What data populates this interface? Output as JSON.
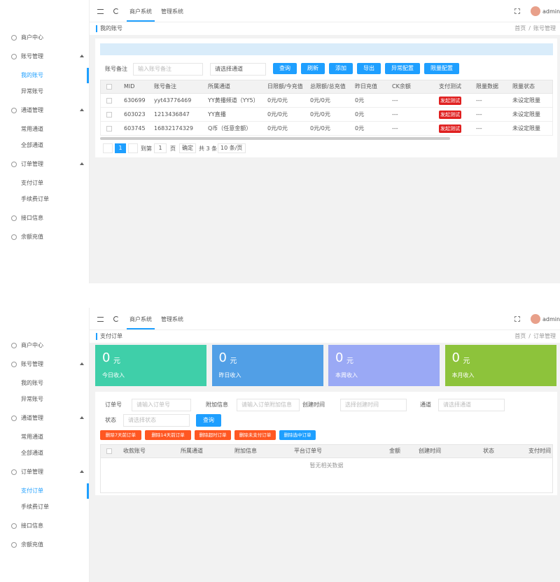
{
  "panels": [
    {
      "topbar": {
        "tabs": [
          "商户系统",
          "管理系统"
        ],
        "user": "admin"
      },
      "sidebar": [
        {
          "label": "商户中心"
        },
        {
          "label": "账号管理",
          "children": [
            {
              "label": "我的账号",
              "selected": true
            },
            {
              "label": "异常账号"
            }
          ]
        },
        {
          "label": "通道管理",
          "children": [
            {
              "label": "常用通道"
            },
            {
              "label": "全部通道"
            }
          ]
        },
        {
          "label": "订单管理",
          "children": [
            {
              "label": "支付订单"
            },
            {
              "label": "手续费订单"
            }
          ]
        },
        {
          "label": "接口信息"
        },
        {
          "label": "余额充值"
        }
      ],
      "breadcrumb": {
        "title": "我的账号",
        "home": "首页",
        "separator": "/",
        "current": "账号管理"
      },
      "filter": {
        "label": "账号备注",
        "placeholder": "输入账号备注",
        "select": "请选择通道"
      },
      "buttons": [
        "查询",
        "刷新",
        "添加",
        "导出",
        "异常配置",
        "限量配置"
      ],
      "table": {
        "columns": [
          "MID",
          "账号备注",
          "所属通道",
          "日限额/今充值",
          "总限额/总充值",
          "昨日充值",
          "CK余额",
          "支付测试",
          "限量数据",
          "限量状态"
        ],
        "rows": [
          [
            "630699",
            "yyt43776469",
            "YY黄播频道（YY5）",
            "0元/0元",
            "0元/0元",
            "0元",
            "---",
            {
              "button": "发起测试"
            },
            "---",
            "未设定限量"
          ],
          [
            "603023",
            "1213436847",
            "YY直播",
            "0元/0元",
            "0元/0元",
            "0元",
            "---",
            {
              "button": "发起测试"
            },
            "---",
            "未设定限量"
          ],
          [
            "603745",
            "16832174329",
            "Q币（任意金额）",
            "0元/0元",
            "0元/0元",
            "0元",
            "---",
            {
              "button": "发起测试"
            },
            "---",
            "未设定限量"
          ]
        ]
      },
      "pagination": {
        "current": 1,
        "goto": "到第",
        "page_input": 1,
        "page_unit": "页",
        "confirm": "确定",
        "total": "共 3 条",
        "size": "10 条/页"
      }
    },
    {
      "topbar": {
        "tabs": [
          "商户系统",
          "管理系统"
        ],
        "user": "admin"
      },
      "sidebar": [
        {
          "label": "商户中心"
        },
        {
          "label": "账号管理",
          "children": [
            {
              "label": "我的账号"
            },
            {
              "label": "异常账号"
            }
          ]
        },
        {
          "label": "通道管理",
          "children": [
            {
              "label": "常用通道"
            },
            {
              "label": "全部通道"
            }
          ]
        },
        {
          "label": "订单管理",
          "children": [
            {
              "label": "支付订单",
              "selected": true
            },
            {
              "label": "手续费订单"
            }
          ]
        },
        {
          "label": "接口信息"
        },
        {
          "label": "余额充值"
        }
      ],
      "breadcrumb": {
        "title": "支付订单",
        "home": "首页",
        "separator": "/",
        "current": "订单管理"
      },
      "cards": [
        {
          "value": 0,
          "unit": "元",
          "label": "今日收入",
          "color": "#3fcfa9"
        },
        {
          "value": 0,
          "unit": "元",
          "label": "昨日收入",
          "color": "#519fe6"
        },
        {
          "value": 0,
          "unit": "元",
          "label": "本周收入",
          "color": "#9aa9f5"
        },
        {
          "value": 0,
          "unit": "元",
          "label": "本月收入",
          "color": "#8dc33b"
        }
      ],
      "order_filters": [
        {
          "label": "订单号",
          "placeholder": "请输入订单号"
        },
        {
          "label": "附加信息",
          "placeholder": "请输入订单附加信息"
        },
        {
          "label": "创建时间",
          "placeholder": "选择创建时间"
        },
        {
          "label": "通道",
          "placeholder": "请选择通道"
        },
        {
          "label": "状态",
          "placeholder": "请选择状态"
        }
      ],
      "query": "查询",
      "actions": [
        {
          "label": "删除7天前订单",
          "color": "#ff5722"
        },
        {
          "label": "删除14天前订单",
          "color": "#ff5722"
        },
        {
          "label": "删除超时订单",
          "color": "#ff5722"
        },
        {
          "label": "删除未支付订单",
          "color": "#ff5722"
        },
        {
          "label": "删除选中订单",
          "color": "#1e9fff"
        }
      ],
      "order_table": {
        "columns": [
          "收款账号",
          "所属通道",
          "附加信息",
          "平台订单号",
          "金额",
          "创建时间",
          "状态",
          "支付时间"
        ],
        "empty": "暂无相关数据"
      }
    }
  ]
}
